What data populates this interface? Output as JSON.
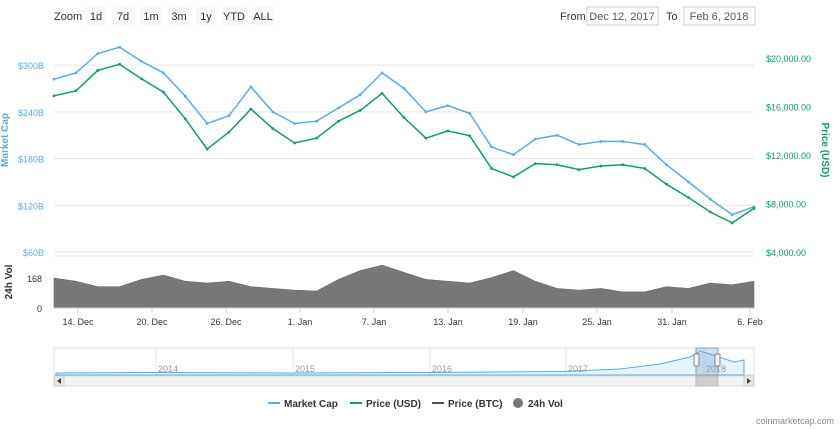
{
  "zoom": {
    "label": "Zoom",
    "buttons": [
      "1d",
      "7d",
      "1m",
      "3m",
      "1y",
      "YTD",
      "ALL"
    ]
  },
  "range": {
    "from_label": "From",
    "from_value": "Dec 12, 2017",
    "to_label": "To",
    "to_value": "Feb 6, 2018"
  },
  "axes": {
    "left_title": "Market Cap",
    "right_title": "Price (USD)",
    "vol_title": "24h Vol",
    "left_ticks": [
      "$300B",
      "$240B",
      "$180B",
      "$120B",
      "$60B"
    ],
    "right_ticks": [
      "$20,000.00",
      "$16,000.00",
      "$12,000.00",
      "$8,000.00",
      "$4,000.00"
    ],
    "vol_ticks": [
      "168",
      "0"
    ],
    "x_ticks": [
      "14. Dec",
      "20. Dec",
      "26. Dec",
      "1. Jan",
      "7. Jan",
      "13. Jan",
      "19. Jan",
      "25. Jan",
      "31. Jan",
      "6. Feb"
    ]
  },
  "navigator": {
    "years": [
      "2014",
      "2015",
      "2016",
      "2017",
      "2018"
    ]
  },
  "legend": {
    "items": [
      {
        "label": "Market Cap",
        "color": "#5aade0",
        "symbol": "line"
      },
      {
        "label": "Price (USD)",
        "color": "#0e9d6e",
        "symbol": "line"
      },
      {
        "label": "Price (BTC)",
        "color": "#555555",
        "symbol": "line"
      },
      {
        "label": "24h Vol",
        "color": "#777777",
        "symbol": "circle"
      }
    ]
  },
  "credit": "coinmarketcap.com",
  "colors": {
    "market_cap": "#5aade0",
    "price_usd": "#0e9d6e",
    "volume": "#777777",
    "grid": "#e6e6e6"
  },
  "chart_data": {
    "type": "line",
    "x": [
      "Dec 12",
      "Dec 14",
      "Dec 16",
      "Dec 17",
      "Dec 18",
      "Dec 20",
      "Dec 22",
      "Dec 23",
      "Dec 24",
      "Dec 26",
      "Dec 28",
      "Dec 30",
      "Jan 1",
      "Jan 3",
      "Jan 5",
      "Jan 7",
      "Jan 9",
      "Jan 11",
      "Jan 13",
      "Jan 15",
      "Jan 16",
      "Jan 17",
      "Jan 19",
      "Jan 21",
      "Jan 23",
      "Jan 25",
      "Jan 27",
      "Jan 29",
      "Jan 31",
      "Feb 2",
      "Feb 4",
      "Feb 5",
      "Feb 6"
    ],
    "series": [
      {
        "name": "Market Cap",
        "axis": "left",
        "values": [
          282,
          290,
          315,
          323,
          305,
          290,
          260,
          225,
          235,
          272,
          240,
          225,
          228,
          245,
          262,
          290,
          270,
          240,
          248,
          238,
          195,
          185,
          205,
          210,
          198,
          202,
          202,
          198,
          172,
          150,
          128,
          108,
          118
        ]
      },
      {
        "name": "Price (USD)",
        "axis": "right",
        "values": [
          16900,
          17300,
          19000,
          19500,
          18300,
          17200,
          15000,
          12500,
          13900,
          15800,
          14200,
          13000,
          13400,
          14800,
          15700,
          17100,
          15100,
          13400,
          14000,
          13600,
          10900,
          10200,
          11300,
          11200,
          10800,
          11100,
          11200,
          10900,
          9600,
          8500,
          7300,
          6400,
          7600
        ]
      },
      {
        "name": "24h Vol",
        "axis": "vol",
        "values": [
          168,
          150,
          120,
          120,
          160,
          185,
          150,
          140,
          150,
          120,
          110,
          100,
          95,
          160,
          210,
          240,
          200,
          160,
          150,
          140,
          170,
          210,
          150,
          110,
          100,
          110,
          90,
          90,
          120,
          110,
          140,
          130,
          150
        ]
      }
    ],
    "left_axis_range": [
      60,
      340
    ],
    "right_axis_range": [
      4000,
      22000
    ],
    "vol_axis_range": [
      0,
      280
    ]
  }
}
